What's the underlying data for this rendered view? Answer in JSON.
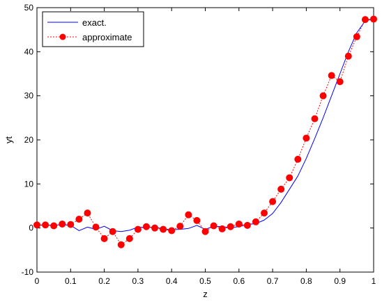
{
  "chart_data": {
    "type": "line",
    "xlabel": "z",
    "ylabel": "yt",
    "xlim": [
      0,
      1
    ],
    "ylim": [
      -10,
      50
    ],
    "xticks": [
      0,
      0.1,
      0.2,
      0.3,
      0.4,
      0.5,
      0.6,
      0.7,
      0.8,
      0.9,
      1
    ],
    "yticks": [
      -10,
      0,
      10,
      20,
      30,
      40,
      50
    ],
    "xtick_labels": [
      "0",
      "0.1",
      "0.2",
      "0.3",
      "0.4",
      "0.5",
      "0.6",
      "0.7",
      "0.8",
      "0.9",
      "1"
    ],
    "ytick_labels": [
      "-10",
      "0",
      "10",
      "20",
      "30",
      "40",
      "50"
    ],
    "grid": false,
    "legend": "top-left",
    "series": [
      {
        "name": "exact.",
        "style": "solid",
        "color": "#0000ff",
        "x": [
          0,
          0.025,
          0.05,
          0.075,
          0.1,
          0.125,
          0.15,
          0.175,
          0.2,
          0.225,
          0.25,
          0.275,
          0.3,
          0.325,
          0.35,
          0.375,
          0.4,
          0.425,
          0.45,
          0.475,
          0.5,
          0.525,
          0.55,
          0.575,
          0.6,
          0.625,
          0.65,
          0.675,
          0.7,
          0.725,
          0.75,
          0.775,
          0.8,
          0.825,
          0.85,
          0.875,
          0.9,
          0.925,
          0.95,
          0.975,
          1
        ],
        "y": [
          0.6,
          0.7,
          0.6,
          0.8,
          0.6,
          -0.6,
          0.2,
          -0.3,
          0.4,
          -0.6,
          -0.8,
          -0.5,
          0.2,
          0.1,
          0.2,
          -0.2,
          -0.4,
          -0.3,
          -0.1,
          0.6,
          -0.3,
          0.4,
          0.3,
          0.1,
          0.3,
          0.8,
          1.0,
          1.8,
          3.3,
          5.8,
          8.8,
          11.8,
          15.8,
          20.3,
          25.0,
          30.0,
          35.0,
          40.0,
          44.3,
          47.0,
          47.5
        ]
      },
      {
        "name": "approximate",
        "style": "dotted",
        "marker": "circle",
        "color": "#ff0000",
        "x": [
          0,
          0.025,
          0.05,
          0.075,
          0.1,
          0.125,
          0.15,
          0.175,
          0.2,
          0.225,
          0.25,
          0.275,
          0.3,
          0.325,
          0.35,
          0.375,
          0.4,
          0.425,
          0.45,
          0.475,
          0.5,
          0.525,
          0.55,
          0.575,
          0.6,
          0.625,
          0.65,
          0.675,
          0.7,
          0.725,
          0.75,
          0.775,
          0.8,
          0.825,
          0.85,
          0.875,
          0.9,
          0.925,
          0.95,
          0.975,
          1
        ],
        "y": [
          0.7,
          0.7,
          0.5,
          0.9,
          0.8,
          2.0,
          3.4,
          0.2,
          -2.4,
          -0.8,
          -3.8,
          -2.4,
          -0.3,
          0.3,
          0.0,
          -0.3,
          -0.6,
          0.4,
          3.0,
          1.7,
          -0.8,
          0.5,
          -0.2,
          0.3,
          0.9,
          0.6,
          1.4,
          3.4,
          6.0,
          8.8,
          11.4,
          15.6,
          20.4,
          24.8,
          30.0,
          34.6,
          33.2,
          39.0,
          43.4,
          47.3,
          47.4
        ]
      }
    ]
  }
}
